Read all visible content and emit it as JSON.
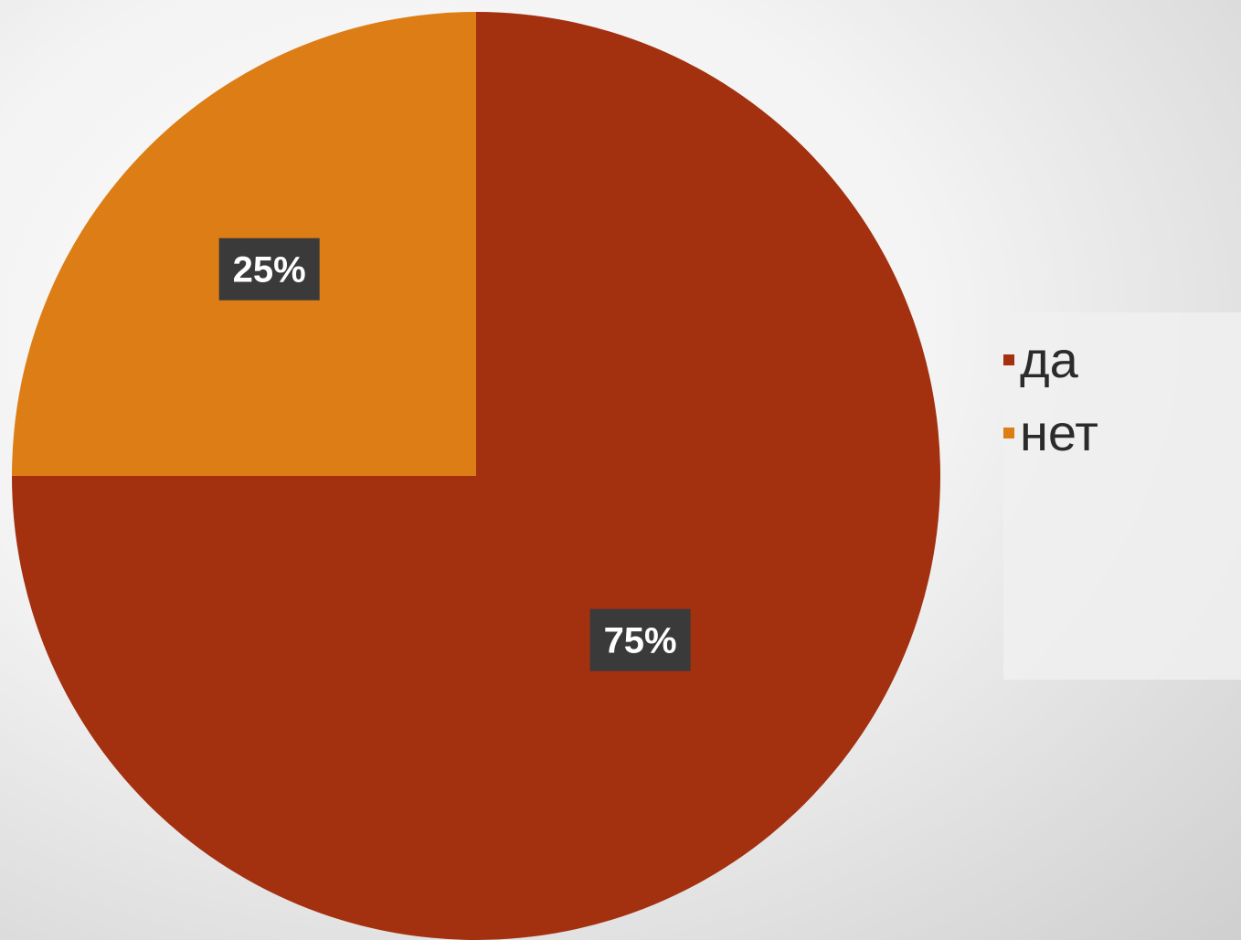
{
  "chart_data": {
    "type": "pie",
    "title": "",
    "slices": [
      {
        "label": "да",
        "value": 75,
        "value_label": "75%",
        "color": "#A3300F"
      },
      {
        "label": "нет",
        "value": 25,
        "value_label": "25%",
        "color": "#DD7D16"
      }
    ],
    "start_angle_deg": 0,
    "direction": "clockwise",
    "data_label_style": {
      "background": "#3A3A3A",
      "text_color": "#FFFFFF"
    },
    "legend": {
      "position": "right",
      "entries": [
        {
          "label": "да",
          "color": "#A3300F"
        },
        {
          "label": "нет",
          "color": "#DD7D16"
        }
      ]
    }
  }
}
